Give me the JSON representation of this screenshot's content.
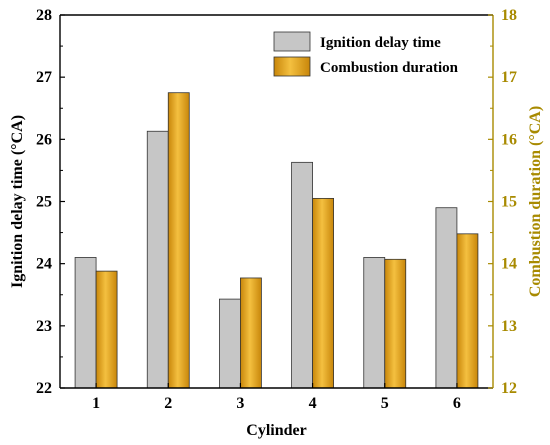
{
  "chart_data": {
    "type": "bar",
    "categories": [
      "1",
      "2",
      "3",
      "4",
      "5",
      "6"
    ],
    "xlabel": "Cylinder",
    "series": [
      {
        "name": "Ignition delay time",
        "axis": "left",
        "values": [
          24.1,
          26.13,
          23.43,
          25.63,
          24.1,
          24.9
        ],
        "color": "#c6c6c6"
      },
      {
        "name": "Combustion duration",
        "axis": "right",
        "values": [
          13.88,
          16.75,
          13.77,
          15.05,
          14.07,
          14.48
        ],
        "color": "#e0a020"
      }
    ],
    "left_axis": {
      "label": "Ignition delay time (°CA)",
      "ylim": [
        22,
        28
      ],
      "ticks": [
        "22",
        "23",
        "24",
        "25",
        "26",
        "27",
        "28"
      ]
    },
    "right_axis": {
      "label": "Combustion duration (°CA)",
      "ylim": [
        12,
        18
      ],
      "ticks": [
        "12",
        "13",
        "14",
        "15",
        "16",
        "17",
        "18"
      ],
      "color": "#a88a00"
    },
    "legend_position": "top-right",
    "grid": false
  }
}
